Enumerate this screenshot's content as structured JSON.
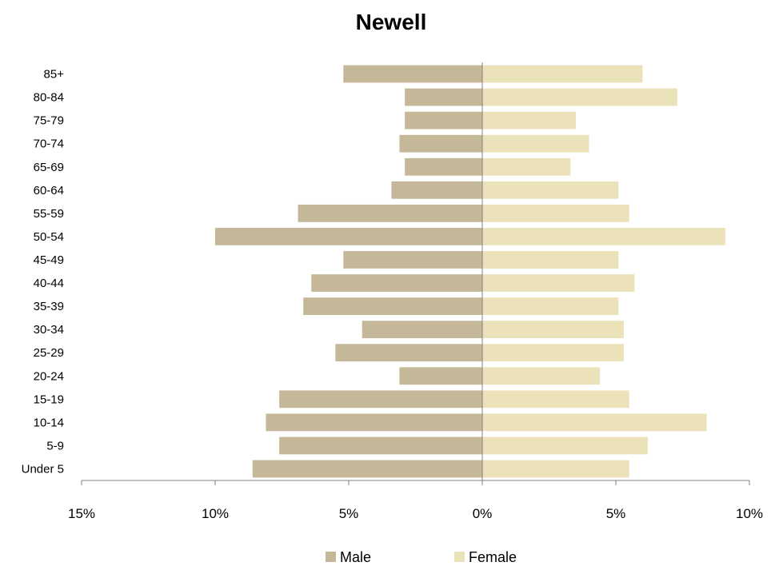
{
  "chart_data": {
    "type": "bar",
    "orientation": "horizontal",
    "title": "Newell",
    "categories": [
      "Under 5",
      "5-9",
      "10-14",
      "15-19",
      "20-24",
      "25-29",
      "30-34",
      "35-39",
      "40-44",
      "45-49",
      "50-54",
      "55-59",
      "60-64",
      "65-69",
      "70-74",
      "75-79",
      "80-84",
      "85+"
    ],
    "series": [
      {
        "name": "Male",
        "color": "#c4b898",
        "values": [
          8.6,
          7.6,
          8.1,
          7.6,
          3.1,
          5.5,
          4.5,
          6.7,
          6.4,
          5.2,
          10.0,
          6.9,
          3.4,
          2.9,
          3.1,
          2.9,
          2.9,
          5.2
        ]
      },
      {
        "name": "Female",
        "color": "#ebe2b9",
        "values": [
          5.5,
          6.2,
          8.4,
          5.5,
          4.4,
          5.3,
          5.3,
          5.1,
          5.7,
          5.1,
          9.1,
          5.5,
          5.1,
          3.3,
          4.0,
          3.5,
          7.3,
          6.0
        ]
      }
    ],
    "xlim": [
      -15,
      10
    ],
    "xticks": [
      -15,
      -10,
      -5,
      0,
      5,
      10
    ],
    "xtick_labels": [
      "15%",
      "10%",
      "5%",
      "0%",
      "5%",
      "10%"
    ],
    "legend_position": "bottom",
    "grid": false
  }
}
